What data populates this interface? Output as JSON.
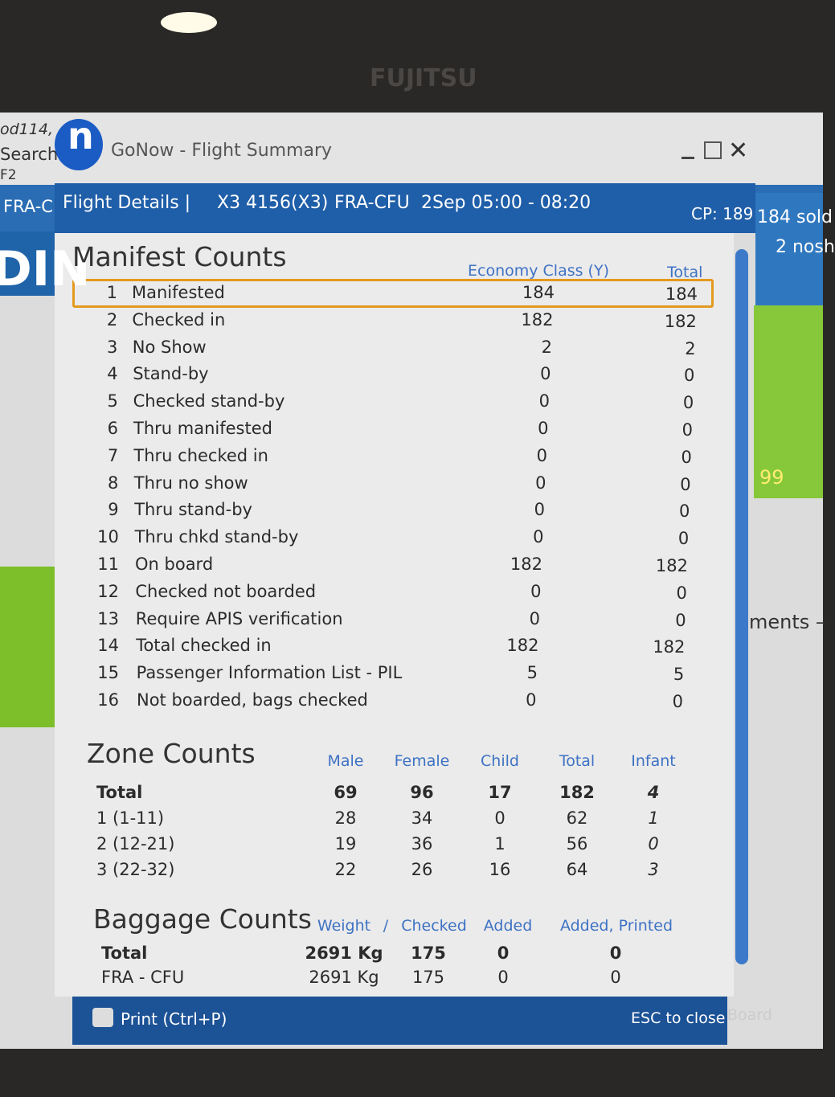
{
  "monitor_brand": "FUJITSU",
  "background_app": {
    "left_texts": [
      "od114,",
      "Search",
      "F2",
      "FRA-C",
      "DIN"
    ],
    "right_texts": [
      "184 sold",
      "2 nosh",
      "99",
      "ments –",
      "Board"
    ]
  },
  "window": {
    "logo": "n",
    "title": "GoNow - Flight Summary"
  },
  "flight_bar": {
    "label": "Flight Details |",
    "flight": "X3 4156(X3)",
    "route": "FRA-CFU",
    "time": "2Sep 05:00 - 08:20",
    "cp": "CP: 189"
  },
  "manifest": {
    "title": "Manifest Counts",
    "columns": [
      "Economy Class (Y)",
      "Total"
    ],
    "rows": [
      [
        "1",
        "Manifested",
        "184",
        "184"
      ],
      [
        "2",
        "Checked in",
        "182",
        "182"
      ],
      [
        "3",
        "No Show",
        "2",
        "2"
      ],
      [
        "4",
        "Stand-by",
        "0",
        "0"
      ],
      [
        "5",
        "Checked stand-by",
        "0",
        "0"
      ],
      [
        "6",
        "Thru manifested",
        "0",
        "0"
      ],
      [
        "7",
        "Thru checked in",
        "0",
        "0"
      ],
      [
        "8",
        "Thru no show",
        "0",
        "0"
      ],
      [
        "9",
        "Thru stand-by",
        "0",
        "0"
      ],
      [
        "10",
        "Thru chkd stand-by",
        "0",
        "0"
      ],
      [
        "11",
        "On board",
        "182",
        "182"
      ],
      [
        "12",
        "Checked not boarded",
        "0",
        "0"
      ],
      [
        "13",
        "Require APIS verification",
        "0",
        "0"
      ],
      [
        "14",
        "Total checked in",
        "182",
        "182"
      ],
      [
        "15",
        "Passenger Information List - PIL",
        "5",
        "5"
      ],
      [
        "16",
        "Not boarded, bags checked",
        "0",
        "0"
      ]
    ]
  },
  "zone": {
    "title": "Zone Counts",
    "columns": [
      "Male",
      "Female",
      "Child",
      "Total",
      "Infant"
    ],
    "rows": [
      [
        "Total",
        "69",
        "96",
        "17",
        "182",
        "4"
      ],
      [
        "1 (1-11)",
        "28",
        "34",
        "0",
        "62",
        "1"
      ],
      [
        "2 (12-21)",
        "19",
        "36",
        "1",
        "56",
        "0"
      ],
      [
        "3 (22-32)",
        "22",
        "26",
        "16",
        "64",
        "3"
      ]
    ]
  },
  "baggage": {
    "title": "Baggage Counts",
    "columns": [
      "Weight",
      "/",
      "Checked",
      "Added",
      "Added, Printed"
    ],
    "rows": [
      [
        "Total",
        "2691 Kg",
        "175",
        "0",
        "0"
      ],
      [
        "FRA - CFU",
        "2691 Kg",
        "175",
        "0",
        "0"
      ]
    ]
  },
  "footer": {
    "print": "Print (Ctrl+P)",
    "close": "ESC to close"
  }
}
